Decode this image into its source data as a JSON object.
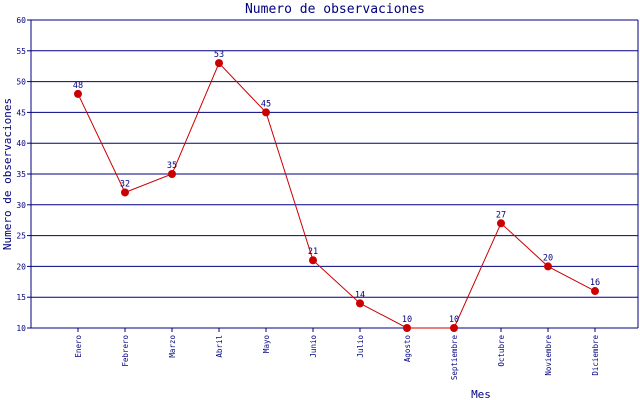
{
  "chart_data": {
    "type": "line",
    "title": "Numero de observaciones",
    "xlabel": "Mes",
    "ylabel": "Numero de observaciones",
    "categories": [
      "Enero",
      "Febrero",
      "Marzo",
      "Abril",
      "Mayo",
      "Junio",
      "Julio",
      "Agosto",
      "Septiembre",
      "Octubre",
      "Noviembre",
      "Diciembre"
    ],
    "values": [
      48,
      32,
      35,
      53,
      45,
      21,
      14,
      10,
      10,
      27,
      20,
      16
    ],
    "ylim": [
      10,
      60
    ],
    "yticks": [
      10,
      15,
      20,
      25,
      30,
      35,
      40,
      45,
      50,
      55,
      60
    ],
    "grid": true,
    "colors": {
      "line": "#cc0000",
      "marker": "#cc0000",
      "grid": "#000080",
      "text": "#000080"
    }
  }
}
